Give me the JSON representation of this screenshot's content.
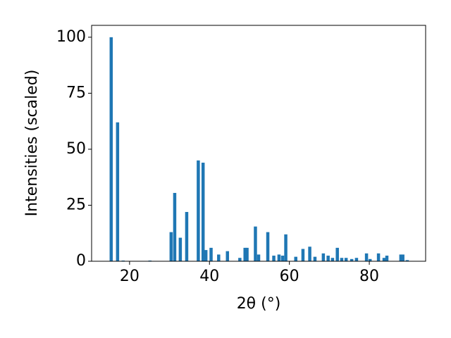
{
  "chart_data": {
    "type": "bar",
    "xlabel": "2θ (°)",
    "ylabel": "Intensities (scaled)",
    "color": "#1f77b4",
    "x": [
      15.4,
      17.0,
      18.4,
      25.1,
      30.4,
      31.3,
      32.7,
      34.3,
      37.2,
      38.4,
      39.1,
      40.4,
      42.3,
      44.5,
      47.6,
      48.9,
      49.4,
      51.5,
      52.3,
      54.6,
      56.1,
      57.4,
      58.3,
      59.1,
      61.6,
      63.4,
      65.1,
      66.4,
      68.5,
      69.7,
      70.8,
      72.0,
      73.1,
      74.2,
      75.6,
      76.8,
      79.3,
      80.2,
      82.3,
      83.7,
      84.4,
      87.9,
      88.4,
      89.5
    ],
    "values": [
      100,
      62,
      0.3,
      0.3,
      13,
      30.5,
      10.5,
      22,
      45,
      44,
      5,
      6,
      3,
      4.5,
      1.5,
      6,
      6,
      15.5,
      3,
      13,
      2.5,
      3,
      2.5,
      12,
      2,
      5.5,
      6.5,
      2,
      3.5,
      2.5,
      1.5,
      6,
      1.5,
      1.5,
      1,
      1.5,
      3.5,
      1,
      3.5,
      1.5,
      2.5,
      3,
      3,
      0.5
    ],
    "xlim": [
      10.5,
      94.1
    ],
    "ylim": [
      0,
      105.3
    ],
    "xticks": [
      20,
      40,
      60,
      80
    ],
    "yticks": [
      0,
      25,
      50,
      75,
      100
    ]
  }
}
